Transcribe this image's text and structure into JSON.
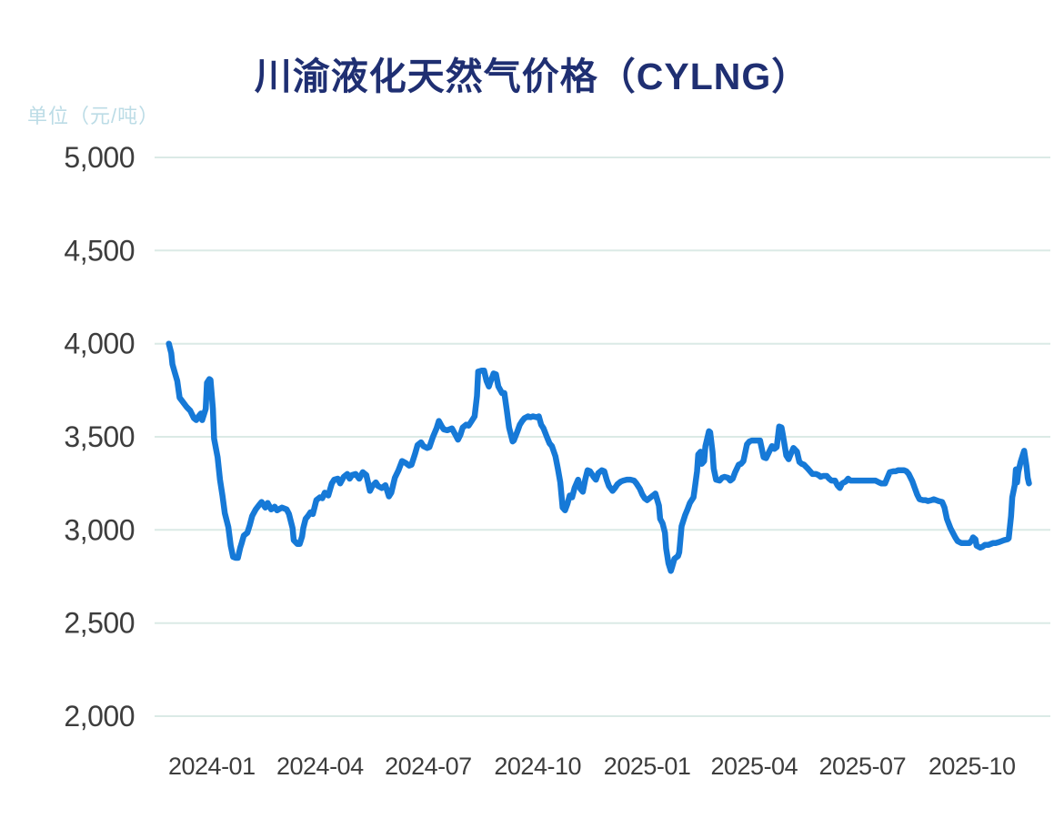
{
  "header": {
    "title": "川渝液化天然气价格（CYLNG）",
    "unit_label": "单位（元/吨）"
  },
  "chart_data": {
    "type": "line",
    "title": "川渝液化天然气价格（CYLNG）",
    "unit": "单位（元/吨）",
    "series_name": "川渝液化天然气价格",
    "grid": true,
    "legend_position": "none",
    "colors": {
      "line": "#1679d7",
      "grid": "#dbeae6",
      "axis_text": "#3d3d3d",
      "title": "#1f2f72",
      "unit_label": "#bcdce6",
      "background": "#ffffff"
    },
    "ylim": [
      2000,
      5000
    ],
    "y_ticks": [
      5000,
      4500,
      4000,
      3500,
      3000,
      2500,
      2000
    ],
    "y_tick_labels": [
      "5,000",
      "4,500",
      "4,000",
      "3,500",
      "3,000",
      "2,500",
      "2,000"
    ],
    "x_domain": [
      "2023-11-14",
      "2025-12-06"
    ],
    "x_ticks": [
      {
        "date": "2024-01-01",
        "label": "2024-01"
      },
      {
        "date": "2024-04-01",
        "label": "2024-04"
      },
      {
        "date": "2024-07-01",
        "label": "2024-07"
      },
      {
        "date": "2024-10-01",
        "label": "2024-10"
      },
      {
        "date": "2025-01-01",
        "label": "2025-01"
      },
      {
        "date": "2025-04-01",
        "label": "2025-04"
      },
      {
        "date": "2025-07-01",
        "label": "2025-07"
      },
      {
        "date": "2025-10-01",
        "label": "2025-10"
      }
    ],
    "points": [
      [
        "2023-11-26",
        4000
      ],
      [
        "2023-11-28",
        3950
      ],
      [
        "2023-11-29",
        3890
      ],
      [
        "2023-12-01",
        3845
      ],
      [
        "2023-12-03",
        3800
      ],
      [
        "2023-12-05",
        3710
      ],
      [
        "2023-12-08",
        3685
      ],
      [
        "2023-12-11",
        3660
      ],
      [
        "2023-12-14",
        3640
      ],
      [
        "2023-12-17",
        3600
      ],
      [
        "2023-12-19",
        3590
      ],
      [
        "2023-12-21",
        3610
      ],
      [
        "2023-12-23",
        3625
      ],
      [
        "2023-12-24",
        3590
      ],
      [
        "2023-12-27",
        3650
      ],
      [
        "2023-12-28",
        3790
      ],
      [
        "2023-12-30",
        3810
      ],
      [
        "2023-12-31",
        3805
      ],
      [
        "2024-01-02",
        3650
      ],
      [
        "2024-01-03",
        3490
      ],
      [
        "2024-01-06",
        3390
      ],
      [
        "2024-01-08",
        3270
      ],
      [
        "2024-01-10",
        3185
      ],
      [
        "2024-01-12",
        3090
      ],
      [
        "2024-01-15",
        3015
      ],
      [
        "2024-01-17",
        2915
      ],
      [
        "2024-01-19",
        2855
      ],
      [
        "2024-01-21",
        2850
      ],
      [
        "2024-01-23",
        2850
      ],
      [
        "2024-01-25",
        2905
      ],
      [
        "2024-01-26",
        2925
      ],
      [
        "2024-01-28",
        2970
      ],
      [
        "2024-01-31",
        2985
      ],
      [
        "2024-02-02",
        3025
      ],
      [
        "2024-02-04",
        3075
      ],
      [
        "2024-02-07",
        3110
      ],
      [
        "2024-02-10",
        3135
      ],
      [
        "2024-02-12",
        3150
      ],
      [
        "2024-02-15",
        3120
      ],
      [
        "2024-02-17",
        3145
      ],
      [
        "2024-02-20",
        3110
      ],
      [
        "2024-02-23",
        3125
      ],
      [
        "2024-02-25",
        3105
      ],
      [
        "2024-02-29",
        3120
      ],
      [
        "2024-03-04",
        3110
      ],
      [
        "2024-03-06",
        3085
      ],
      [
        "2024-03-09",
        3010
      ],
      [
        "2024-03-10",
        2945
      ],
      [
        "2024-03-13",
        2925
      ],
      [
        "2024-03-15",
        2925
      ],
      [
        "2024-03-17",
        2965
      ],
      [
        "2024-03-18",
        3010
      ],
      [
        "2024-03-20",
        3060
      ],
      [
        "2024-03-22",
        3075
      ],
      [
        "2024-03-24",
        3095
      ],
      [
        "2024-03-26",
        3085
      ],
      [
        "2024-03-29",
        3160
      ],
      [
        "2024-04-01",
        3175
      ],
      [
        "2024-04-03",
        3170
      ],
      [
        "2024-04-05",
        3200
      ],
      [
        "2024-04-08",
        3185
      ],
      [
        "2024-04-11",
        3250
      ],
      [
        "2024-04-13",
        3270
      ],
      [
        "2024-04-16",
        3275
      ],
      [
        "2024-04-18",
        3250
      ],
      [
        "2024-04-21",
        3285
      ],
      [
        "2024-04-24",
        3300
      ],
      [
        "2024-04-26",
        3275
      ],
      [
        "2024-04-28",
        3295
      ],
      [
        "2024-05-01",
        3300
      ],
      [
        "2024-05-04",
        3275
      ],
      [
        "2024-05-07",
        3310
      ],
      [
        "2024-05-10",
        3295
      ],
      [
        "2024-05-13",
        3210
      ],
      [
        "2024-05-15",
        3235
      ],
      [
        "2024-05-18",
        3255
      ],
      [
        "2024-05-20",
        3235
      ],
      [
        "2024-05-23",
        3225
      ],
      [
        "2024-05-26",
        3240
      ],
      [
        "2024-05-29",
        3180
      ],
      [
        "2024-05-31",
        3200
      ],
      [
        "2024-06-03",
        3280
      ],
      [
        "2024-06-06",
        3320
      ],
      [
        "2024-06-09",
        3370
      ],
      [
        "2024-06-12",
        3360
      ],
      [
        "2024-06-15",
        3345
      ],
      [
        "2024-06-17",
        3350
      ],
      [
        "2024-06-20",
        3410
      ],
      [
        "2024-06-22",
        3455
      ],
      [
        "2024-06-25",
        3470
      ],
      [
        "2024-06-27",
        3450
      ],
      [
        "2024-06-30",
        3440
      ],
      [
        "2024-07-02",
        3445
      ],
      [
        "2024-07-05",
        3500
      ],
      [
        "2024-07-08",
        3545
      ],
      [
        "2024-07-10",
        3585
      ],
      [
        "2024-07-12",
        3560
      ],
      [
        "2024-07-14",
        3540
      ],
      [
        "2024-07-17",
        3535
      ],
      [
        "2024-07-19",
        3540
      ],
      [
        "2024-07-21",
        3545
      ],
      [
        "2024-07-24",
        3510
      ],
      [
        "2024-07-26",
        3485
      ],
      [
        "2024-07-28",
        3510
      ],
      [
        "2024-07-30",
        3550
      ],
      [
        "2024-08-02",
        3565
      ],
      [
        "2024-08-04",
        3560
      ],
      [
        "2024-08-06",
        3580
      ],
      [
        "2024-08-09",
        3610
      ],
      [
        "2024-08-11",
        3720
      ],
      [
        "2024-08-12",
        3850
      ],
      [
        "2024-08-15",
        3855
      ],
      [
        "2024-08-17",
        3855
      ],
      [
        "2024-08-19",
        3800
      ],
      [
        "2024-08-21",
        3770
      ],
      [
        "2024-08-22",
        3790
      ],
      [
        "2024-08-25",
        3840
      ],
      [
        "2024-08-27",
        3835
      ],
      [
        "2024-08-29",
        3770
      ],
      [
        "2024-09-01",
        3735
      ],
      [
        "2024-09-03",
        3735
      ],
      [
        "2024-09-05",
        3645
      ],
      [
        "2024-09-07",
        3550
      ],
      [
        "2024-09-10",
        3475
      ],
      [
        "2024-09-11",
        3480
      ],
      [
        "2024-09-14",
        3530
      ],
      [
        "2024-09-16",
        3565
      ],
      [
        "2024-09-18",
        3585
      ],
      [
        "2024-09-20",
        3600
      ],
      [
        "2024-09-23",
        3610
      ],
      [
        "2024-09-25",
        3605
      ],
      [
        "2024-09-27",
        3610
      ],
      [
        "2024-09-30",
        3605
      ],
      [
        "2024-10-02",
        3610
      ],
      [
        "2024-10-04",
        3565
      ],
      [
        "2024-10-06",
        3545
      ],
      [
        "2024-10-09",
        3495
      ],
      [
        "2024-10-11",
        3465
      ],
      [
        "2024-10-13",
        3450
      ],
      [
        "2024-10-16",
        3395
      ],
      [
        "2024-10-18",
        3330
      ],
      [
        "2024-10-20",
        3255
      ],
      [
        "2024-10-22",
        3120
      ],
      [
        "2024-10-24",
        3105
      ],
      [
        "2024-10-26",
        3140
      ],
      [
        "2024-10-28",
        3185
      ],
      [
        "2024-10-30",
        3175
      ],
      [
        "2024-11-01",
        3225
      ],
      [
        "2024-11-04",
        3270
      ],
      [
        "2024-11-06",
        3220
      ],
      [
        "2024-11-08",
        3205
      ],
      [
        "2024-11-10",
        3270
      ],
      [
        "2024-11-12",
        3320
      ],
      [
        "2024-11-14",
        3315
      ],
      [
        "2024-11-17",
        3285
      ],
      [
        "2024-11-19",
        3270
      ],
      [
        "2024-11-21",
        3305
      ],
      [
        "2024-11-24",
        3320
      ],
      [
        "2024-11-26",
        3315
      ],
      [
        "2024-11-28",
        3270
      ],
      [
        "2024-11-30",
        3235
      ],
      [
        "2024-12-03",
        3210
      ],
      [
        "2024-12-05",
        3225
      ],
      [
        "2024-12-07",
        3245
      ],
      [
        "2024-12-10",
        3260
      ],
      [
        "2024-12-12",
        3265
      ],
      [
        "2024-12-15",
        3270
      ],
      [
        "2024-12-18",
        3270
      ],
      [
        "2024-12-21",
        3265
      ],
      [
        "2024-12-23",
        3250
      ],
      [
        "2024-12-26",
        3220
      ],
      [
        "2024-12-28",
        3190
      ],
      [
        "2024-12-30",
        3170
      ],
      [
        "2025-01-01",
        3160
      ],
      [
        "2025-01-04",
        3175
      ],
      [
        "2025-01-06",
        3185
      ],
      [
        "2025-01-08",
        3195
      ],
      [
        "2025-01-11",
        3130
      ],
      [
        "2025-01-12",
        3060
      ],
      [
        "2025-01-14",
        3035
      ],
      [
        "2025-01-16",
        2985
      ],
      [
        "2025-01-17",
        2900
      ],
      [
        "2025-01-19",
        2820
      ],
      [
        "2025-01-21",
        2780
      ],
      [
        "2025-01-22",
        2800
      ],
      [
        "2025-01-24",
        2845
      ],
      [
        "2025-01-27",
        2860
      ],
      [
        "2025-01-28",
        2880
      ],
      [
        "2025-01-30",
        3020
      ],
      [
        "2025-02-02",
        3080
      ],
      [
        "2025-02-04",
        3110
      ],
      [
        "2025-02-06",
        3145
      ],
      [
        "2025-02-09",
        3175
      ],
      [
        "2025-02-10",
        3220
      ],
      [
        "2025-02-12",
        3315
      ],
      [
        "2025-02-13",
        3405
      ],
      [
        "2025-02-15",
        3420
      ],
      [
        "2025-02-16",
        3355
      ],
      [
        "2025-02-18",
        3370
      ],
      [
        "2025-02-19",
        3450
      ],
      [
        "2025-02-22",
        3530
      ],
      [
        "2025-02-23",
        3525
      ],
      [
        "2025-02-25",
        3420
      ],
      [
        "2025-02-26",
        3330
      ],
      [
        "2025-02-28",
        3270
      ],
      [
        "2025-03-03",
        3265
      ],
      [
        "2025-03-05",
        3280
      ],
      [
        "2025-03-07",
        3285
      ],
      [
        "2025-03-10",
        3280
      ],
      [
        "2025-03-12",
        3265
      ],
      [
        "2025-03-14",
        3275
      ],
      [
        "2025-03-16",
        3310
      ],
      [
        "2025-03-19",
        3350
      ],
      [
        "2025-03-21",
        3355
      ],
      [
        "2025-03-23",
        3370
      ],
      [
        "2025-03-26",
        3460
      ],
      [
        "2025-03-28",
        3475
      ],
      [
        "2025-03-30",
        3480
      ],
      [
        "2025-04-01",
        3480
      ],
      [
        "2025-04-04",
        3480
      ],
      [
        "2025-04-06",
        3480
      ],
      [
        "2025-04-08",
        3420
      ],
      [
        "2025-04-09",
        3390
      ],
      [
        "2025-04-11",
        3385
      ],
      [
        "2025-04-14",
        3425
      ],
      [
        "2025-04-16",
        3450
      ],
      [
        "2025-04-18",
        3435
      ],
      [
        "2025-04-20",
        3445
      ],
      [
        "2025-04-22",
        3555
      ],
      [
        "2025-04-24",
        3550
      ],
      [
        "2025-04-25",
        3515
      ],
      [
        "2025-04-27",
        3440
      ],
      [
        "2025-04-28",
        3400
      ],
      [
        "2025-04-30",
        3380
      ],
      [
        "2025-05-02",
        3410
      ],
      [
        "2025-05-04",
        3440
      ],
      [
        "2025-05-07",
        3420
      ],
      [
        "2025-05-09",
        3365
      ],
      [
        "2025-05-11",
        3355
      ],
      [
        "2025-05-13",
        3350
      ],
      [
        "2025-05-16",
        3330
      ],
      [
        "2025-05-18",
        3315
      ],
      [
        "2025-05-20",
        3300
      ],
      [
        "2025-05-23",
        3300
      ],
      [
        "2025-05-25",
        3295
      ],
      [
        "2025-05-27",
        3285
      ],
      [
        "2025-05-29",
        3290
      ],
      [
        "2025-06-01",
        3290
      ],
      [
        "2025-06-03",
        3275
      ],
      [
        "2025-06-05",
        3265
      ],
      [
        "2025-06-08",
        3265
      ],
      [
        "2025-06-10",
        3240
      ],
      [
        "2025-06-12",
        3225
      ],
      [
        "2025-06-14",
        3250
      ],
      [
        "2025-06-17",
        3260
      ],
      [
        "2025-06-19",
        3275
      ],
      [
        "2025-06-21",
        3265
      ],
      [
        "2025-06-24",
        3265
      ],
      [
        "2025-06-27",
        3265
      ],
      [
        "2025-06-30",
        3265
      ],
      [
        "2025-07-03",
        3265
      ],
      [
        "2025-07-06",
        3265
      ],
      [
        "2025-07-09",
        3265
      ],
      [
        "2025-07-12",
        3265
      ],
      [
        "2025-07-15",
        3255
      ],
      [
        "2025-07-17",
        3250
      ],
      [
        "2025-07-20",
        3250
      ],
      [
        "2025-07-22",
        3280
      ],
      [
        "2025-07-24",
        3310
      ],
      [
        "2025-07-27",
        3315
      ],
      [
        "2025-07-29",
        3315
      ],
      [
        "2025-07-31",
        3320
      ],
      [
        "2025-08-02",
        3320
      ],
      [
        "2025-08-05",
        3320
      ],
      [
        "2025-08-07",
        3315
      ],
      [
        "2025-08-09",
        3300
      ],
      [
        "2025-08-12",
        3260
      ],
      [
        "2025-08-14",
        3225
      ],
      [
        "2025-08-16",
        3190
      ],
      [
        "2025-08-18",
        3165
      ],
      [
        "2025-08-21",
        3160
      ],
      [
        "2025-08-23",
        3160
      ],
      [
        "2025-08-25",
        3155
      ],
      [
        "2025-08-28",
        3160
      ],
      [
        "2025-08-30",
        3165
      ],
      [
        "2025-09-01",
        3160
      ],
      [
        "2025-09-03",
        3155
      ],
      [
        "2025-09-06",
        3150
      ],
      [
        "2025-09-08",
        3120
      ],
      [
        "2025-09-10",
        3060
      ],
      [
        "2025-09-13",
        3010
      ],
      [
        "2025-09-15",
        2985
      ],
      [
        "2025-09-17",
        2960
      ],
      [
        "2025-09-19",
        2940
      ],
      [
        "2025-09-22",
        2930
      ],
      [
        "2025-09-24",
        2930
      ],
      [
        "2025-09-26",
        2930
      ],
      [
        "2025-09-29",
        2930
      ],
      [
        "2025-10-01",
        2945
      ],
      [
        "2025-10-02",
        2960
      ],
      [
        "2025-10-04",
        2950
      ],
      [
        "2025-10-05",
        2915
      ],
      [
        "2025-10-08",
        2905
      ],
      [
        "2025-10-10",
        2910
      ],
      [
        "2025-10-12",
        2920
      ],
      [
        "2025-10-15",
        2920
      ],
      [
        "2025-10-17",
        2925
      ],
      [
        "2025-10-19",
        2930
      ],
      [
        "2025-10-21",
        2930
      ],
      [
        "2025-10-24",
        2935
      ],
      [
        "2025-10-26",
        2940
      ],
      [
        "2025-10-28",
        2945
      ],
      [
        "2025-10-31",
        2950
      ],
      [
        "2025-11-01",
        2955
      ],
      [
        "2025-11-03",
        3075
      ],
      [
        "2025-11-04",
        3175
      ],
      [
        "2025-11-06",
        3240
      ],
      [
        "2025-11-07",
        3325
      ],
      [
        "2025-11-08",
        3255
      ],
      [
        "2025-11-09",
        3310
      ],
      [
        "2025-11-11",
        3365
      ],
      [
        "2025-11-13",
        3405
      ],
      [
        "2025-11-14",
        3425
      ],
      [
        "2025-11-16",
        3340
      ],
      [
        "2025-11-17",
        3280
      ],
      [
        "2025-11-18",
        3250
      ]
    ]
  }
}
